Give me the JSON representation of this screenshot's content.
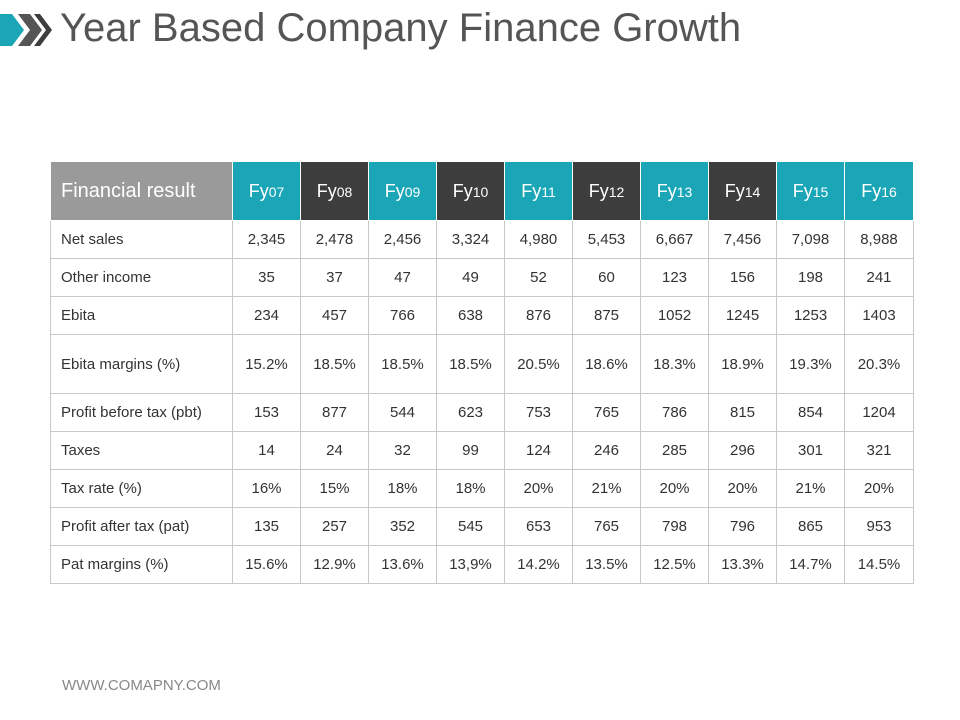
{
  "title": "Year Based Company Finance Growth",
  "colors": {
    "teal": "#1aa6b7",
    "dark": "#3d3d3d",
    "label_header": "#9a9a9a"
  },
  "table": {
    "header_label": "Financial result",
    "columns": [
      {
        "prefix": "Fy",
        "num": "07",
        "style": "teal"
      },
      {
        "prefix": "Fy",
        "num": "08",
        "style": "dark"
      },
      {
        "prefix": "Fy",
        "num": "09",
        "style": "teal"
      },
      {
        "prefix": "Fy",
        "num": "10",
        "style": "dark"
      },
      {
        "prefix": "Fy",
        "num": "11",
        "style": "teal"
      },
      {
        "prefix": "Fy",
        "num": "12",
        "style": "dark"
      },
      {
        "prefix": "Fy",
        "num": "13",
        "style": "teal"
      },
      {
        "prefix": "Fy",
        "num": "14",
        "style": "dark"
      },
      {
        "prefix": "Fy",
        "num": "15",
        "style": "teal"
      },
      {
        "prefix": "Fy",
        "num": "16",
        "style": "teal"
      }
    ],
    "rows": [
      {
        "label": "Net sales",
        "values": [
          "2,345",
          "2,478",
          "2,456",
          "3,324",
          "4,980",
          "5,453",
          "6,667",
          "7,456",
          "7,098",
          "8,988"
        ]
      },
      {
        "label": "Other income",
        "values": [
          "35",
          "37",
          "47",
          "49",
          "52",
          "60",
          "123",
          "156",
          "198",
          "241"
        ]
      },
      {
        "label": "Ebita",
        "values": [
          "234",
          "457",
          "766",
          "638",
          "876",
          "875",
          "1052",
          "1245",
          "1253",
          "1403"
        ]
      },
      {
        "label": "Ebita margins (%)",
        "values": [
          "15.2%",
          "18.5%",
          "18.5%",
          "18.5%",
          "20.5%",
          "18.6%",
          "18.3%",
          "18.9%",
          "19.3%",
          "20.3%"
        ]
      },
      {
        "label": "Profit before tax (pbt)",
        "values": [
          "153",
          "877",
          "544",
          "623",
          "753",
          "765",
          "786",
          "815",
          "854",
          "1204"
        ]
      },
      {
        "label": "Taxes",
        "values": [
          "14",
          "24",
          "32",
          "99",
          "124",
          "246",
          "285",
          "296",
          "301",
          "321"
        ]
      },
      {
        "label": "Tax rate (%)",
        "values": [
          "16%",
          "15%",
          "18%",
          "18%",
          "20%",
          "21%",
          "20%",
          "20%",
          "21%",
          "20%"
        ]
      },
      {
        "label": "Profit after tax (pat)",
        "values": [
          "135",
          "257",
          "352",
          "545",
          "653",
          "765",
          "798",
          "796",
          "865",
          "953"
        ]
      },
      {
        "label": "Pat margins (%)",
        "values": [
          "15.6%",
          "12.9%",
          "13.6%",
          "13,9%",
          "14.2%",
          "13.5%",
          "12.5%",
          "13.3%",
          "14.7%",
          "14.5%"
        ]
      }
    ]
  },
  "footer": "WWW.COMAPNY.COM"
}
